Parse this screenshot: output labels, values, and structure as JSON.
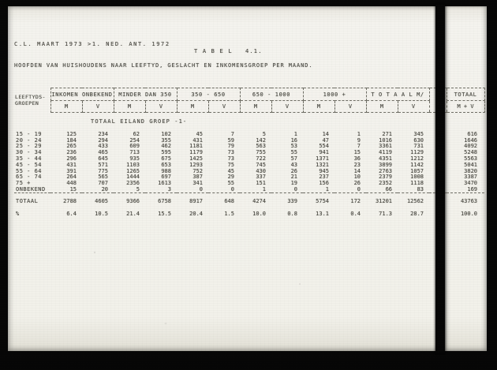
{
  "document": {
    "header_line1": "C.L. MAART 1973 >1. NED. ANT. 1972",
    "table_number": "T A B E L   4.1.",
    "title": "HOOFDEN VAN HUISHOUDENS NAAR LEEFTYD, GESLACHT EN INKOMENSGROEP PER MAAND."
  },
  "table": {
    "row_label_header_line1": "LEEFTYDS-",
    "row_label_header_line2": "GROEPEN",
    "income_groups": [
      "INKOMEN ONBEKEND",
      "MINDER DAN 350",
      "350 - 650",
      "650 - 1000",
      "1000 +",
      "T O T A A L  M/",
      "TOTAAL"
    ],
    "subheaders": [
      "M",
      "V",
      "M",
      "V",
      "M",
      "V",
      "M",
      "V",
      "M",
      "V",
      "M",
      "V",
      "M + V"
    ],
    "section_label": "TOTAAL EILAND GROEP -1-",
    "rows": [
      {
        "label": "15 - 19",
        "values": [
          "125",
          "234",
          "62",
          "102",
          "45",
          "7",
          "5",
          "1",
          "14",
          "1",
          "271",
          "345",
          "616"
        ]
      },
      {
        "label": "20 - 24",
        "values": [
          "184",
          "294",
          "254",
          "355",
          "431",
          "59",
          "142",
          "16",
          "47",
          "9",
          "1016",
          "630",
          "1646"
        ]
      },
      {
        "label": "25 - 29",
        "values": [
          "265",
          "433",
          "609",
          "462",
          "1181",
          "79",
          "563",
          "53",
          "554",
          "7",
          "3361",
          "731",
          "4092"
        ]
      },
      {
        "label": "30 - 34",
        "values": [
          "236",
          "465",
          "713",
          "595",
          "1179",
          "73",
          "755",
          "55",
          "941",
          "15",
          "4119",
          "1129",
          "5248"
        ]
      },
      {
        "label": "35 - 44",
        "values": [
          "296",
          "645",
          "935",
          "675",
          "1425",
          "73",
          "722",
          "57",
          "1371",
          "36",
          "4351",
          "1212",
          "5563"
        ]
      },
      {
        "label": "45 - 54",
        "values": [
          "431",
          "571",
          "1103",
          "653",
          "1293",
          "75",
          "745",
          "43",
          "1321",
          "23",
          "3899",
          "1142",
          "5041"
        ]
      },
      {
        "label": "55 - 64",
        "values": [
          "391",
          "775",
          "1265",
          "988",
          "752",
          "45",
          "430",
          "26",
          "945",
          "14",
          "2763",
          "1057",
          "3820"
        ]
      },
      {
        "label": "65 - 74",
        "values": [
          "264",
          "565",
          "1444",
          "697",
          "387",
          "29",
          "337",
          "21",
          "237",
          "10",
          "2379",
          "1008",
          "3387"
        ]
      },
      {
        "label": "75 +",
        "values": [
          "448",
          "707",
          "2356",
          "1613",
          "341",
          "55",
          "151",
          "19",
          "156",
          "26",
          "2352",
          "1118",
          "3470"
        ]
      },
      {
        "label": "ONBEKEND",
        "values": [
          "15",
          "20",
          "5",
          "3",
          "0",
          "0",
          "1",
          "0",
          "1",
          "0",
          "66",
          "83",
          "169"
        ]
      }
    ],
    "total_row": {
      "label": "TOTAAL",
      "values": [
        "2788",
        "4605",
        "9366",
        "6758",
        "8917",
        "648",
        "4274",
        "339",
        "5754",
        "172",
        "31201",
        "12562",
        "43763"
      ]
    },
    "percent_row": {
      "label": "%",
      "values": [
        "6.4",
        "10.5",
        "21.4",
        "15.5",
        "20.4",
        "1.5",
        "10.0",
        "0.8",
        "13.1",
        "0.4",
        "71.3",
        "28.7",
        "100.0"
      ]
    }
  },
  "colors": {
    "page": "#f2f1ea",
    "ink": "#4b4a43",
    "frame": "#060606"
  }
}
